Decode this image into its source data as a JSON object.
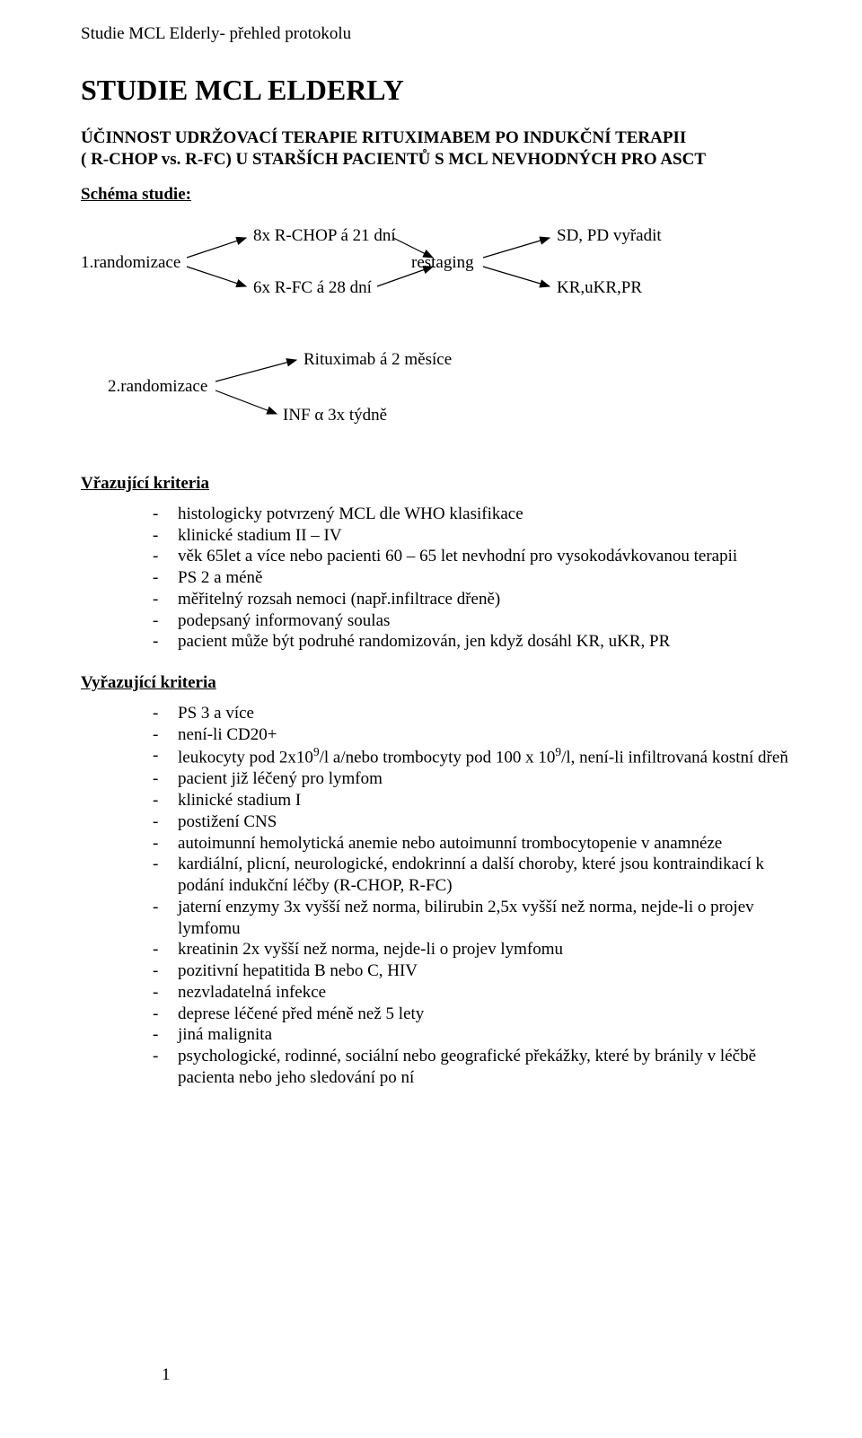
{
  "colors": {
    "text": "#000000",
    "background": "#ffffff",
    "arrow_stroke": "#000000"
  },
  "fonts": {
    "family": "Times New Roman",
    "body_size_pt": 14,
    "title_size_pt": 24
  },
  "header": "Studie MCL Elderly- přehled protokolu",
  "title": "STUDIE MCL ELDERLY",
  "subtitle_line1": "ÚČINNOST UDRŽOVACÍ TERAPIE RITUXIMABEM PO INDUKČNÍ TERAPII",
  "subtitle_line2": "( R-CHOP vs. R-FC) U STARŠÍCH PACIENTŮ S MCL NEVHODNÝCH PRO ASCT",
  "schema_label": "Schéma studie:",
  "flow1": {
    "type": "flowchart",
    "arrow_stroke_width": 1.2,
    "nodes": {
      "left": "1.randomizace",
      "top": "8x R-CHOP á 21 dní",
      "bottom": "6x R-FC á 28 dní",
      "mid": "restaging",
      "right_top": "SD, PD vyřadit",
      "right_bot": "KR,uKR,PR"
    },
    "edges": [
      {
        "from": "left",
        "to": "top"
      },
      {
        "from": "left",
        "to": "bottom"
      },
      {
        "from": "top",
        "to": "mid"
      },
      {
        "from": "bottom",
        "to": "mid"
      },
      {
        "from": "mid",
        "to": "right_top"
      },
      {
        "from": "mid",
        "to": "right_bot"
      }
    ]
  },
  "flow2": {
    "type": "flowchart",
    "arrow_stroke_width": 1.2,
    "nodes": {
      "left": "2.randomizace",
      "top": "Rituximab á 2 měsíce",
      "bottom": "INF α 3x týdně"
    },
    "edges": [
      {
        "from": "left",
        "to": "top"
      },
      {
        "from": "left",
        "to": "bottom"
      }
    ]
  },
  "inclusion": {
    "title": "Vřazující kriteria",
    "items": [
      "histologicky potvrzený MCL dle WHO klasifikace",
      "klinické stadium II – IV",
      "věk 65let a více nebo pacienti 60 – 65 let  nevhodní pro vysokodávkovanou terapii",
      "PS 2 a méně",
      "měřitelný rozsah nemoci (např.infiltrace dřeně)",
      "podepsaný informovaný soulas",
      "pacient může být podruhé randomizován, jen když dosáhl KR, uKR, PR"
    ]
  },
  "exclusion": {
    "title": "Vyřazující kriteria",
    "items_html": [
      "PS 3 a více",
      "není-li CD20+",
      "leukocyty pod 2x10<sup>9</sup>/l a/nebo trombocyty pod 100 x 10<sup>9</sup>/l, není-li infiltrovaná kostní dřeň",
      "pacient již léčený pro lymfom",
      "klinické stadium I",
      "postižení CNS",
      "autoimunní hemolytická anemie nebo autoimunní trombocytopenie v anamnéze",
      "kardiální, plicní, neurologické, endokrinní a další choroby, které jsou kontraindikací k podání indukční léčby (R-CHOP, R-FC)",
      "jaterní enzymy 3x vyšší než norma, bilirubin 2,5x vyšší než norma, nejde-li o projev lymfomu",
      "kreatinin 2x vyšší než norma, nejde-li o projev lymfomu",
      "pozitivní hepatitida B nebo C, HIV",
      "nezvladatelná infekce",
      "deprese léčené před méně než 5 lety",
      "jiná malignita",
      "psychologické, rodinné, sociální nebo geografické překážky, které by bránily v léčbě pacienta nebo jeho sledování po ní"
    ]
  },
  "page_number": "1"
}
